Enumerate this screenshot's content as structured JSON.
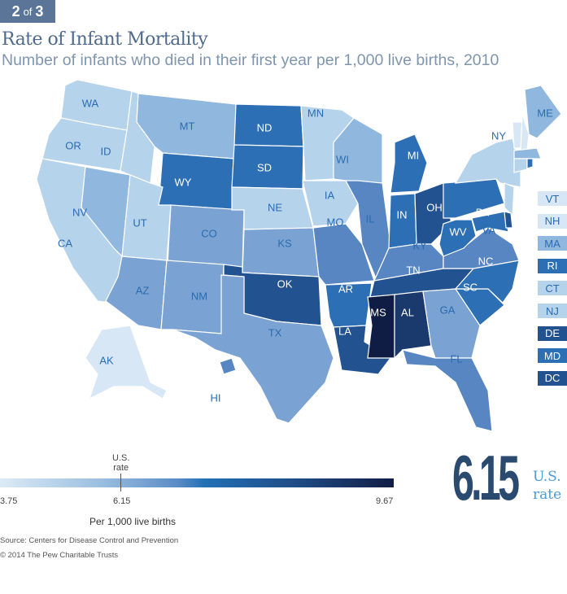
{
  "badge": {
    "current": "2",
    "of": "of",
    "total": "3"
  },
  "title": "Rate of Infant Mortality",
  "subtitle": "Number of infants who died in their first year per 1,000 live births, 2010",
  "palette": [
    "#d7e7f5",
    "#b6d3ec",
    "#90b8de",
    "#7aa3d3",
    "#5786c3",
    "#2d6fb5",
    "#235290",
    "#1a3a6e",
    "#0f1d45"
  ],
  "states": {
    "WA": 1,
    "OR": 1,
    "CA": 1,
    "ID": 1,
    "NV": 2,
    "MT": 2,
    "WY": 5,
    "UT": 1,
    "AZ": 3,
    "CO": 3,
    "NM": 3,
    "ND": 5,
    "SD": 5,
    "NE": 1,
    "KS": 3,
    "OK": 6,
    "TX": 3,
    "MN": 1,
    "IA": 1,
    "MO": 4,
    "AR": 5,
    "LA": 6,
    "WI": 2,
    "IL": 4,
    "MI": 5,
    "IN": 5,
    "OH": 6,
    "KY": 4,
    "TN": 6,
    "MS": 8,
    "AL": 7,
    "GA": 3,
    "FL": 4,
    "SC": 5,
    "NC": 5,
    "VA": 4,
    "WV": 5,
    "PA": 5,
    "NY": 1,
    "ME": 2,
    "VT": 0,
    "NH": 0,
    "MA": 2,
    "CT": 1,
    "RI": 5,
    "NJ": 1,
    "DE": 6,
    "MD": 5,
    "AK": 0,
    "HI": 4
  },
  "side_states": [
    {
      "abbr": "VT",
      "level": 0
    },
    {
      "abbr": "NH",
      "level": 0
    },
    {
      "abbr": "MA",
      "level": 2
    },
    {
      "abbr": "RI",
      "level": 5
    },
    {
      "abbr": "CT",
      "level": 1
    },
    {
      "abbr": "NJ",
      "level": 1
    },
    {
      "abbr": "DE",
      "level": 6
    },
    {
      "abbr": "MD",
      "level": 5
    },
    {
      "abbr": "DC",
      "level": 6
    }
  ],
  "legend": {
    "us_rate_label_1": "U.S.",
    "us_rate_label_2": "rate",
    "min": "3.75",
    "mid": "6.15",
    "max": "9.67",
    "unit": "Per 1,000 live births",
    "range": [
      3.75,
      9.67
    ],
    "us_rate": 6.15
  },
  "headline": {
    "value": "6.15",
    "label_1": "U.S.",
    "label_2": "rate"
  },
  "source": "Source: Centers for Disease Control and Prevention",
  "copyright": "© 2014 The Pew Charitable Trusts"
}
